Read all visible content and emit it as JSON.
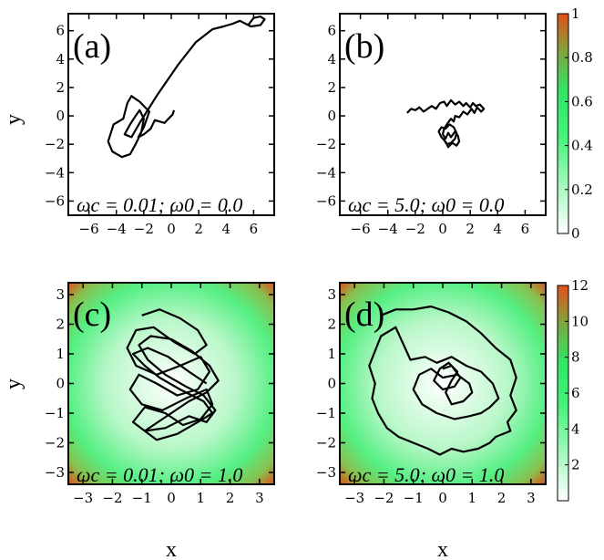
{
  "chart_data": [
    {
      "panel": "a",
      "type": "line",
      "label": "(a)",
      "annotation": "ωc = 0.01; ω0 = 0.0",
      "xlim": [
        -7.5,
        7.5
      ],
      "ylim": [
        -7,
        7.2
      ],
      "xticks": [
        -6,
        -4,
        -2,
        0,
        2,
        4,
        6
      ],
      "yticks": [
        -6,
        -4,
        -2,
        0,
        2,
        4,
        6
      ],
      "ylabel": "y",
      "background": "white",
      "trajectory": {
        "x": [
          0.2,
          0.1,
          -0.5,
          -1.2,
          -1.5,
          -2.0,
          -2.4,
          -2.0,
          -1.6,
          -2.3,
          -2.9,
          -3.2,
          -3.5,
          -4.2,
          -4.6,
          -4.3,
          -3.6,
          -3.0,
          -2.6,
          -2.2,
          -2.0,
          -2.3,
          -2.6,
          -3.0,
          -3.4,
          -2.9,
          -2.3,
          -1.0,
          0.5,
          1.8,
          3.0,
          3.8,
          4.5,
          5.0,
          5.6,
          6.0,
          6.5,
          6.8,
          6.5,
          5.8,
          5.4
        ],
        "y": [
          0.4,
          0.1,
          -0.5,
          -0.3,
          -0.9,
          -1.3,
          -1.5,
          -0.8,
          0.3,
          1.0,
          1.4,
          0.9,
          -0.2,
          -0.6,
          -1.8,
          -2.5,
          -2.9,
          -2.7,
          -2.0,
          -1.2,
          -0.2,
          0.4,
          0.0,
          -0.6,
          -1.3,
          -1.5,
          -0.5,
          1.5,
          3.6,
          5.2,
          6.1,
          6.3,
          6.5,
          6.7,
          6.4,
          6.9,
          7.0,
          6.8,
          6.4,
          6.3,
          6.5
        ]
      }
    },
    {
      "panel": "b",
      "type": "line",
      "label": "(b)",
      "annotation": "ωc = 5.0; ω0 = 0.0",
      "xlim": [
        -7.5,
        7.5
      ],
      "ylim": [
        -7,
        7.2
      ],
      "xticks": [
        -6,
        -4,
        -2,
        0,
        2,
        4,
        6
      ],
      "yticks": [
        -6,
        -4,
        -2,
        0,
        2,
        4,
        6
      ],
      "background": "white",
      "trajectory": {
        "x": [
          -2.6,
          -2.3,
          -2.0,
          -1.7,
          -1.4,
          -1.1,
          -0.8,
          -0.5,
          -0.2,
          0.1,
          0.3,
          0.6,
          0.9,
          1.2,
          1.5,
          1.7,
          2.0,
          2.2,
          2.4,
          2.7,
          3.0,
          2.8,
          2.5,
          2.3,
          2.1,
          1.8,
          1.5,
          1.2,
          0.9,
          0.8,
          0.6,
          0.3,
          0.1,
          0.0,
          0.2,
          0.4,
          0.6,
          0.9,
          1.1,
          1.2,
          1.0,
          0.7,
          0.4,
          0.2,
          -0.1,
          -0.3,
          -0.1,
          0.2,
          0.5,
          0.8,
          1.0,
          0.9,
          0.6,
          0.3,
          0.1
        ],
        "y": [
          0.2,
          0.5,
          0.4,
          0.6,
          0.3,
          0.5,
          0.7,
          0.5,
          0.9,
          1.0,
          0.7,
          1.1,
          0.8,
          1.0,
          0.7,
          0.9,
          0.6,
          0.9,
          0.7,
          0.8,
          0.5,
          0.3,
          0.6,
          0.2,
          0.5,
          0.1,
          0.3,
          -0.1,
          0.0,
          -0.4,
          -0.2,
          -0.6,
          -0.9,
          -1.3,
          -1.6,
          -1.2,
          -1.5,
          -1.1,
          -1.4,
          -1.8,
          -2.1,
          -1.9,
          -2.2,
          -1.8,
          -1.5,
          -1.1,
          -0.8,
          -0.9,
          -0.6,
          -0.8,
          -1.2,
          -1.6,
          -1.9,
          -2.0,
          -1.7
        ]
      }
    },
    {
      "panel": "c",
      "type": "line",
      "label": "(c)",
      "annotation": "ωc = 0.01; ω0 = 1.0",
      "xlim": [
        -3.5,
        3.5
      ],
      "ylim": [
        -3.4,
        3.4
      ],
      "xticks": [
        -3,
        -2,
        -1,
        0,
        1,
        2,
        3
      ],
      "yticks": [
        -3,
        -2,
        -1,
        0,
        1,
        2,
        3
      ],
      "xlabel": "x",
      "ylabel": "y",
      "background": "harmonic-potential",
      "trajectory": {
        "x": [
          -1.0,
          -0.4,
          0.3,
          0.9,
          1.2,
          0.8,
          0.1,
          -0.6,
          -1.2,
          -1.5,
          -1.2,
          -0.5,
          0.3,
          1.0,
          1.3,
          0.9,
          0.2,
          -0.5,
          -1.1,
          -1.4,
          -1.0,
          -0.3,
          0.5,
          1.2,
          1.4,
          1.0,
          0.4,
          -0.2,
          -0.9,
          -1.3,
          -0.9,
          -0.2,
          0.6,
          1.2,
          1.5,
          1.1,
          0.5,
          -0.2,
          -0.8,
          -1.1,
          -0.7,
          0.0,
          0.7,
          1.3,
          1.6,
          1.2,
          0.6,
          0.0,
          -0.6,
          -0.9,
          -0.5,
          0.2,
          0.9,
          1.4,
          1.1,
          0.3,
          -0.4,
          -0.9,
          -1.3,
          -0.8,
          -0.1,
          0.6,
          1.2
        ],
        "y": [
          2.3,
          2.5,
          2.2,
          1.8,
          1.3,
          1.0,
          1.4,
          1.9,
          1.8,
          1.2,
          0.6,
          0.3,
          0.6,
          0.9,
          0.4,
          -0.2,
          -0.4,
          0.0,
          0.3,
          -0.2,
          -0.7,
          -0.9,
          -0.5,
          -0.2,
          -0.7,
          -1.2,
          -1.4,
          -1.0,
          -0.8,
          -1.3,
          -1.6,
          -1.5,
          -1.1,
          -1.3,
          -0.9,
          -0.4,
          -0.1,
          0.3,
          0.8,
          1.3,
          1.6,
          1.5,
          1.1,
          0.6,
          0.1,
          -0.3,
          -0.6,
          -1.0,
          -1.4,
          -1.6,
          -1.9,
          -1.7,
          -1.3,
          -1.0,
          -0.6,
          -0.2,
          0.2,
          0.6,
          1.0,
          1.2,
          0.9,
          0.4,
          0.0
        ]
      }
    },
    {
      "panel": "d",
      "type": "line",
      "label": "(d)",
      "annotation": "ωc = 5.0; ω0 = 1.0",
      "xlim": [
        -3.5,
        3.5
      ],
      "ylim": [
        -3.4,
        3.4
      ],
      "xticks": [
        -3,
        -2,
        -1,
        0,
        1,
        2,
        3
      ],
      "yticks": [
        -3,
        -2,
        -1,
        0,
        1,
        2,
        3
      ],
      "xlabel": "x",
      "background": "harmonic-potential",
      "trajectory": {
        "x": [
          -2.1,
          -1.6,
          -1.0,
          -0.4,
          0.2,
          0.8,
          1.3,
          1.8,
          2.3,
          2.5,
          2.3,
          2.5,
          2.2,
          2.3,
          1.8,
          1.6,
          1.2,
          0.7,
          0.3,
          -0.1,
          -0.5,
          -1.0,
          -1.5,
          -1.9,
          -2.2,
          -2.4,
          -2.3,
          -2.5,
          -2.3,
          -2.1,
          -1.6,
          -1.1,
          -0.6,
          -0.2,
          0.3,
          0.8,
          1.3,
          1.7,
          1.9,
          1.6,
          1.3,
          0.9,
          0.4,
          -0.2,
          -0.7,
          -1.0,
          -0.8,
          -0.4,
          0.0,
          0.5,
          0.9,
          1.0,
          0.7,
          0.3,
          0.1,
          0.3,
          0.5,
          0.2,
          -0.1,
          -0.3,
          0.0,
          0.4,
          0.6,
          0.3,
          0.0
        ],
        "y": [
          2.3,
          2.5,
          2.5,
          2.6,
          2.4,
          2.1,
          1.7,
          1.2,
          0.8,
          0.2,
          -0.4,
          -0.9,
          -1.3,
          -1.6,
          -1.8,
          -2.0,
          -2.2,
          -2.3,
          -2.2,
          -2.4,
          -2.2,
          -2.0,
          -1.8,
          -1.5,
          -1.0,
          -0.5,
          0.0,
          0.6,
          1.1,
          1.6,
          1.9,
          0.8,
          0.9,
          0.7,
          0.9,
          0.6,
          0.4,
          0.0,
          -0.5,
          -0.8,
          -1.0,
          -1.1,
          -1.2,
          -1.0,
          -0.7,
          -0.2,
          0.3,
          0.5,
          0.2,
          0.3,
          0.0,
          -0.3,
          -0.6,
          -0.7,
          -0.3,
          0.1,
          0.4,
          0.7,
          0.5,
          0.1,
          -0.2,
          -0.1,
          0.2,
          0.6,
          0.5
        ]
      }
    }
  ],
  "colorbars": [
    {
      "panel_row": "top",
      "ticks": [
        0,
        0.2,
        0.4,
        0.6,
        0.8,
        1
      ],
      "tick_labels": [
        "0",
        "0.2",
        "0.4",
        "0.6",
        "0.8",
        "1"
      ],
      "range": [
        0,
        1
      ]
    },
    {
      "panel_row": "bottom",
      "ticks": [
        2,
        4,
        6,
        8,
        10,
        12
      ],
      "tick_labels": [
        "2",
        "4",
        "6",
        "8",
        "10",
        "12"
      ],
      "range": [
        0,
        12
      ]
    }
  ],
  "colors": {
    "low": "#ffffff",
    "mid": "#33ff77",
    "high": "#e24a16",
    "line": "#000000"
  }
}
